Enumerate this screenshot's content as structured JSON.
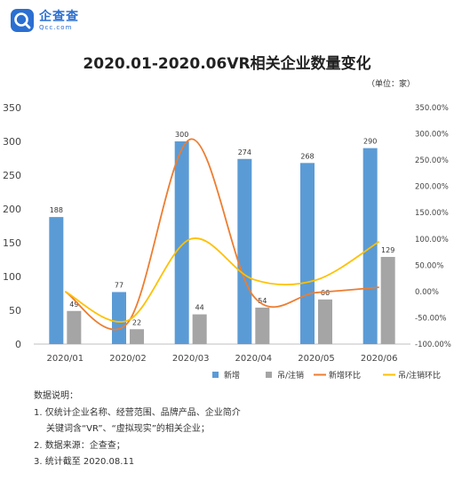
{
  "brand": {
    "name": "企查查",
    "sub": "Qcc.com"
  },
  "title": "2020.01-2020.06VR相关企业数量变化",
  "unit": "（单位：家）",
  "chart_data": {
    "type": "bar",
    "categories": [
      "2020/01",
      "2020/02",
      "2020/03",
      "2020/04",
      "2020/05",
      "2020/06"
    ],
    "series": [
      {
        "name": "新增",
        "type": "bar",
        "axis": "left",
        "color": "#5b9bd5",
        "values": [
          188,
          77,
          300,
          274,
          268,
          290
        ]
      },
      {
        "name": "吊/注销",
        "type": "bar",
        "axis": "left",
        "color": "#a5a5a5",
        "values": [
          49,
          22,
          44,
          54,
          66,
          129
        ]
      },
      {
        "name": "新增环比",
        "type": "line",
        "axis": "right",
        "color": "#ed7d31",
        "values": [
          0,
          -59,
          290,
          -9,
          -2,
          8
        ]
      },
      {
        "name": "吊/注销环比",
        "type": "line",
        "axis": "right",
        "color": "#ffc000",
        "values": [
          0,
          -55,
          100,
          23,
          22,
          95
        ]
      }
    ],
    "ylim_left": [
      0,
      350
    ],
    "yticks_left": [
      "0",
      "50",
      "100",
      "150",
      "200",
      "250",
      "300",
      "350"
    ],
    "ylim_right": [
      -100,
      350
    ],
    "yticks_right": [
      "-100.00%",
      "-50.00%",
      "0.00%",
      "50.00%",
      "100.00%",
      "150.00%",
      "200.00%",
      "250.00%",
      "300.00%",
      "350.00%"
    ],
    "bar_labels": {
      "新增": [
        "188",
        "77",
        "300",
        "274",
        "268",
        "290"
      ],
      "吊/注销": [
        "49",
        "22",
        "44",
        "54",
        "66",
        "129"
      ]
    },
    "legend_position": "bottom"
  },
  "notes": [
    "数据说明：",
    "1. 仅统计企业名称、经营范围、品牌产品、企业简介",
    "关键词含“VR”、“虚拟现实”的相关企业；",
    "2. 数据来源：企查查；",
    "3. 统计截至 2020.08.11"
  ]
}
